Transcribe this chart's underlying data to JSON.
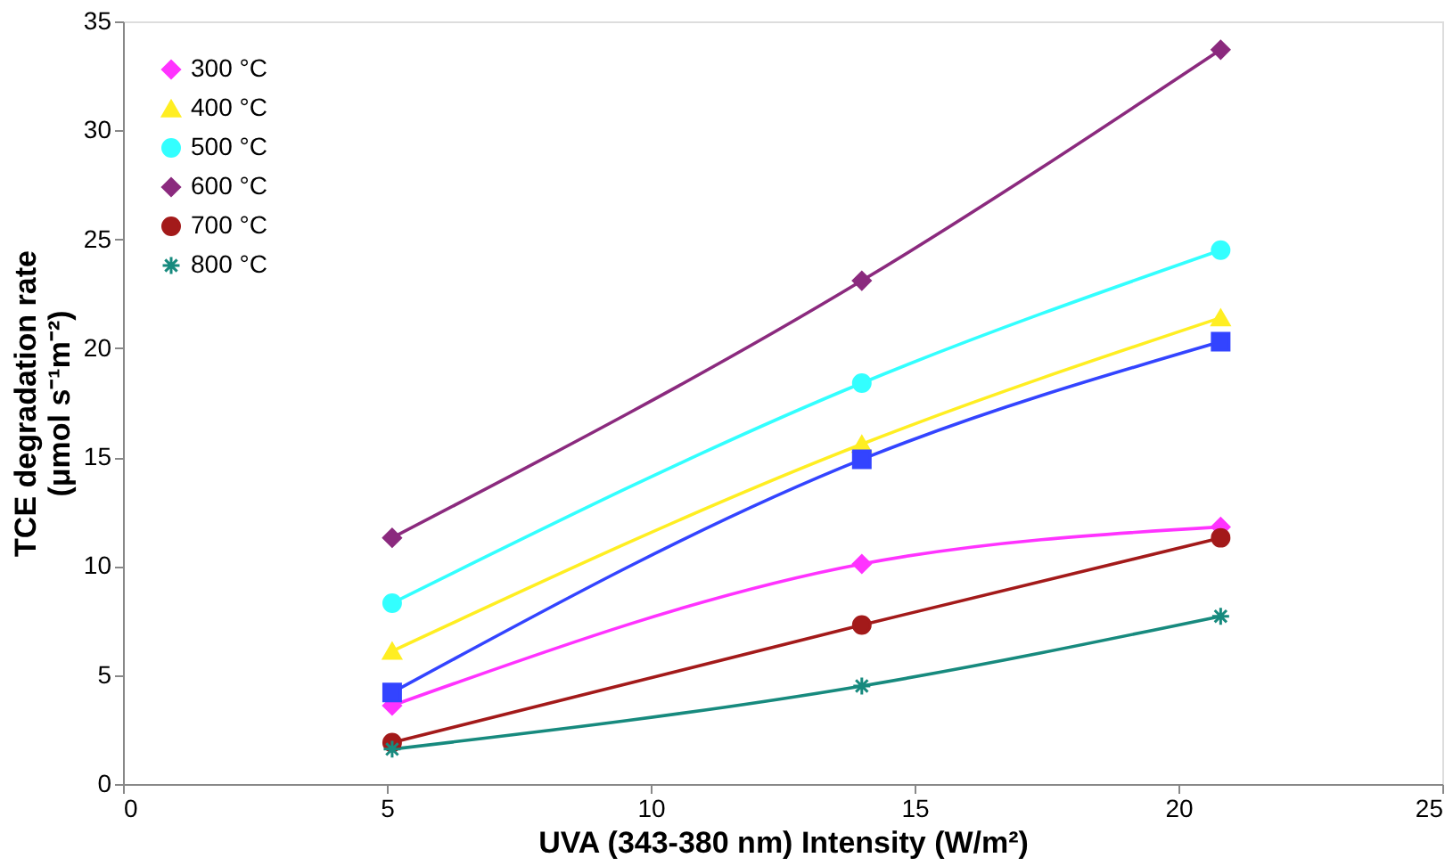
{
  "chart_data": {
    "type": "line",
    "xlabel": "UVA (343-380 nm) Intensity (W/m²)",
    "ylabel": "TCE degradation rate (μmol s⁻¹m⁻²)",
    "xlim": [
      0,
      25
    ],
    "xticks": [
      0,
      5,
      10,
      15,
      20,
      25
    ],
    "ylim": [
      0,
      35
    ],
    "yticks": [
      0,
      5,
      10,
      15,
      20,
      25,
      30,
      35
    ],
    "grid": false,
    "legend": "top left",
    "x": [
      5.1,
      14,
      20.8
    ],
    "series": [
      {
        "name": "300 °C",
        "color": "#ff33ff",
        "marker": "diamond",
        "values": [
          3.6,
          10.1,
          11.8
        ]
      },
      {
        "name": "400 °C",
        "color": "#ffee22",
        "marker": "triangle",
        "values": [
          6.1,
          15.6,
          21.4
        ]
      },
      {
        "name": "500 °C",
        "color": "#33ffff",
        "marker": "circle",
        "values": [
          8.3,
          18.4,
          24.5
        ]
      },
      {
        "name": "600 °C",
        "color": "#8b2a7e",
        "marker": "diamond",
        "values": [
          11.3,
          23.1,
          33.7
        ]
      },
      {
        "name": "700 °C",
        "color": "#a31a1a",
        "marker": "circle",
        "values": [
          1.9,
          7.3,
          11.3
        ]
      },
      {
        "name": "800 °C",
        "color": "#178a7e",
        "marker": "cross",
        "values": [
          1.6,
          4.5,
          7.7
        ]
      },
      {
        "color": "#3344ff",
        "marker": "square",
        "values": [
          4.2,
          14.9,
          20.3
        ]
      }
    ]
  }
}
